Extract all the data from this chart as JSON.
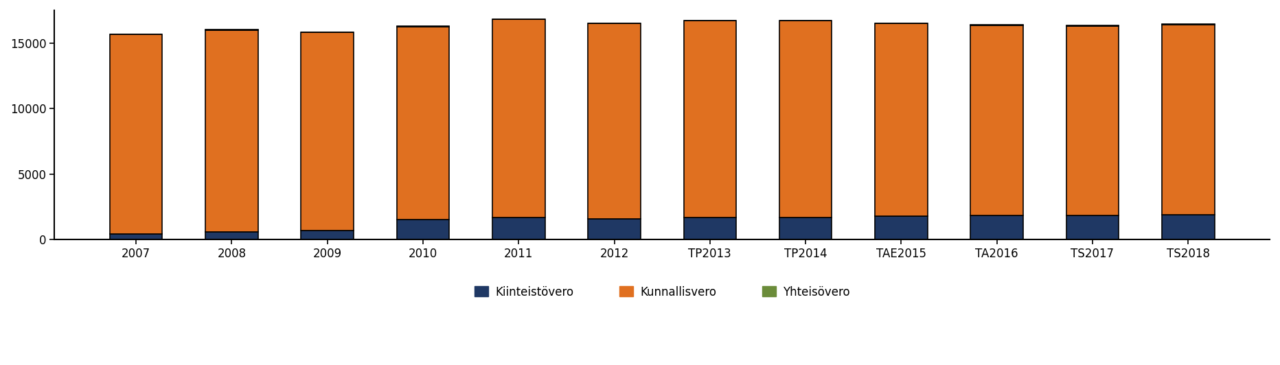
{
  "categories": [
    "2007",
    "2008",
    "2009",
    "2010",
    "2011",
    "2012",
    "TP2013",
    "TP2014",
    "TAE2015",
    "TA2016",
    "TS2017",
    "TS2018"
  ],
  "kiinteistovero": [
    450,
    600,
    700,
    1550,
    1700,
    1600,
    1700,
    1700,
    1800,
    1850,
    1850,
    1900
  ],
  "kunnallisvero": [
    15200,
    15400,
    15100,
    14700,
    15100,
    14900,
    15000,
    15000,
    14700,
    14500,
    14450,
    14500
  ],
  "yhteisovero": [
    30,
    30,
    30,
    30,
    30,
    30,
    30,
    30,
    30,
    30,
    30,
    30
  ],
  "color_kiinteisto": "#1f3864",
  "color_kunnallis": "#e07020",
  "color_yhteis": "#6b8c3a",
  "legend_labels": [
    "Kiinteistövero",
    "Kunnallisvero",
    "Yhteisövero"
  ],
  "ylim": [
    0,
    17500
  ],
  "yticks": [
    0,
    5000,
    10000,
    15000
  ],
  "bar_width": 0.55,
  "background_color": "#ffffff",
  "edge_color": "#000000",
  "tick_fontsize": 12,
  "legend_fontsize": 12
}
